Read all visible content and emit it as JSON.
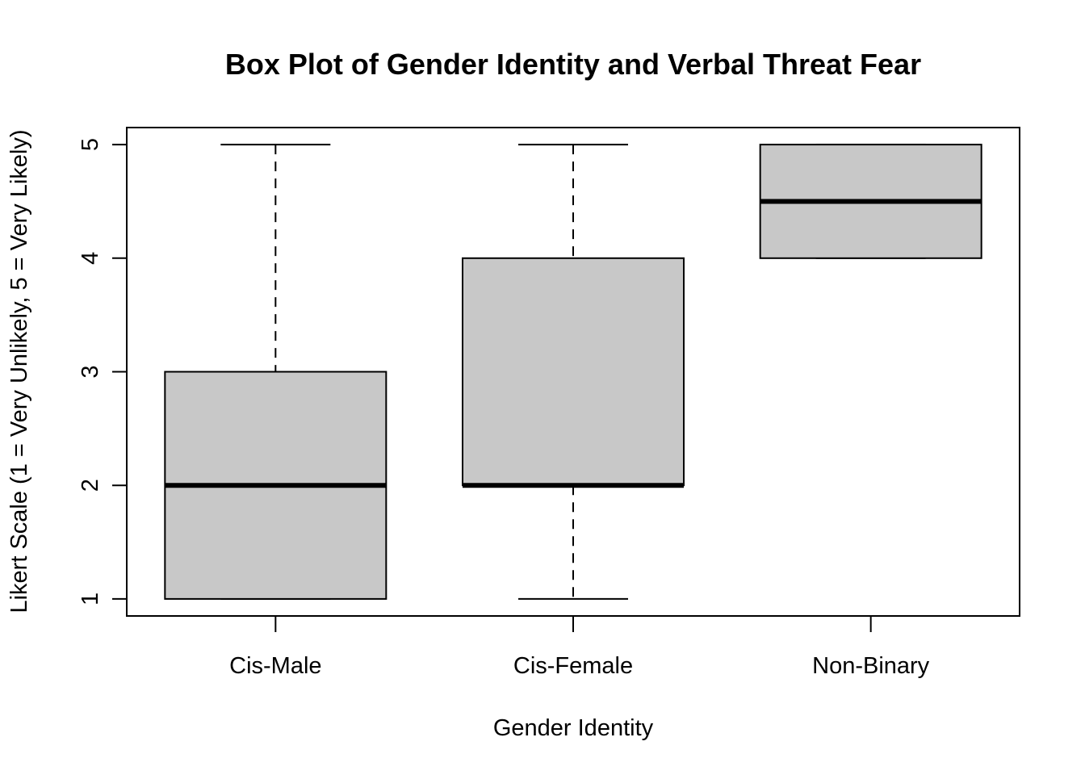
{
  "chart_data": {
    "type": "box",
    "title": "Box Plot of Gender Identity and Verbal Threat Fear",
    "xlabel": "Gender Identity",
    "ylabel": "Likert Scale (1 = Very Unlikely, 5 = Very Likely)",
    "ylim": [
      0.85,
      5.15
    ],
    "yticks": [
      1,
      2,
      3,
      4,
      5
    ],
    "categories": [
      "Cis-Male",
      "Cis-Female",
      "Non-Binary"
    ],
    "boxes": [
      {
        "category": "Cis-Male",
        "min": 1,
        "q1": 1,
        "median": 2,
        "q3": 3,
        "max": 5
      },
      {
        "category": "Cis-Female",
        "min": 1,
        "q1": 2,
        "median": 2,
        "q3": 4,
        "max": 5
      },
      {
        "category": "Non-Binary",
        "min": 4,
        "q1": 4,
        "median": 4.5,
        "q3": 5,
        "max": 5
      }
    ],
    "box_fill": "#c8c8c8",
    "grid": false,
    "legend": "none"
  }
}
